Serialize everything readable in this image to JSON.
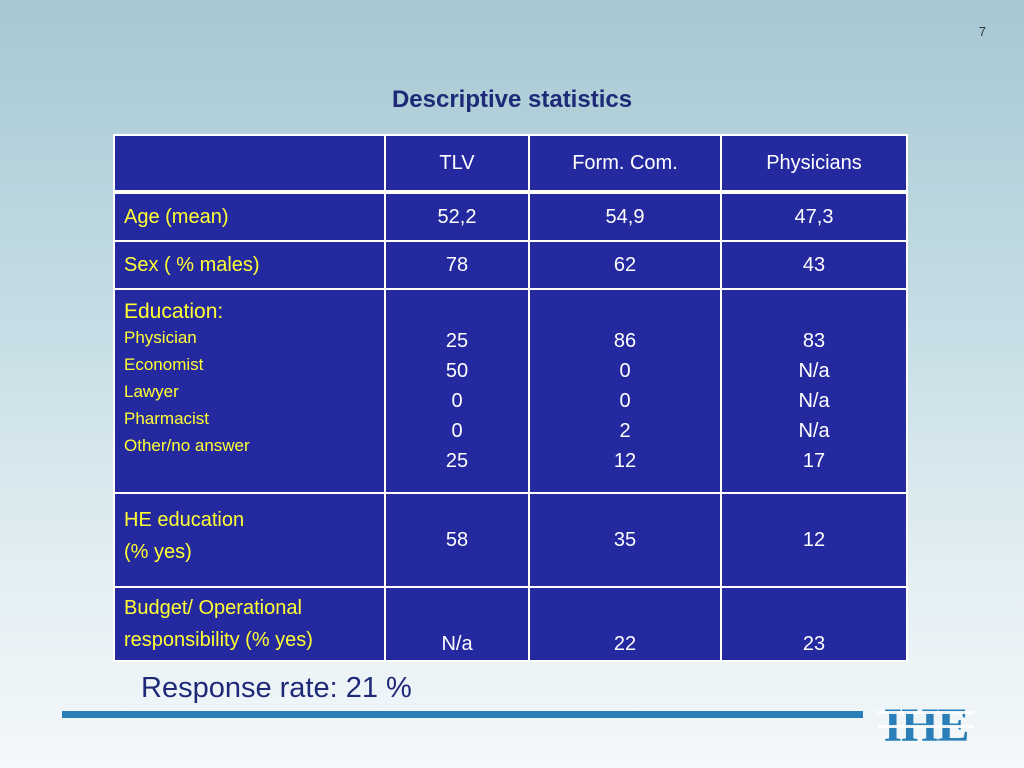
{
  "slide": {
    "page_number": "7",
    "title": "Descriptive statistics",
    "response_rate": "Response rate: 21 %",
    "logo_text": "IHE"
  },
  "table": {
    "headers": [
      "",
      "TLV",
      "Form. Com.",
      "Physicians"
    ],
    "age": {
      "label": "Age (mean)",
      "values": [
        "52,2",
        "54,9",
        "47,3"
      ]
    },
    "sex": {
      "label": "Sex ( % males)",
      "values": [
        "78",
        "62",
        "43"
      ]
    },
    "education": {
      "label": "Education:",
      "sublabels": [
        "Physician",
        "Economist",
        "Lawyer",
        "Pharmacist",
        "Other/no answer"
      ],
      "tlv": [
        "25",
        "50",
        "0",
        "0",
        "25"
      ],
      "formcom": [
        "86",
        "0",
        "0",
        "2",
        "12"
      ],
      "physicians": [
        "83",
        "N/a",
        "N/a",
        "N/a",
        "17"
      ]
    },
    "he": {
      "label_line1": "HE education",
      "label_line2": "(% yes)",
      "values": [
        "58",
        "35",
        "12"
      ]
    },
    "budget": {
      "label_line1": "Budget/ Operational",
      "label_line2": "responsibility (% yes)",
      "values": [
        "N/a",
        "22",
        "23"
      ]
    }
  },
  "colors": {
    "table_fill": "#2529a0",
    "label_text": "#ffff33",
    "title_text": "#1e2a78",
    "bar": "#2a7fb8",
    "logo": "#2a7fb8"
  }
}
